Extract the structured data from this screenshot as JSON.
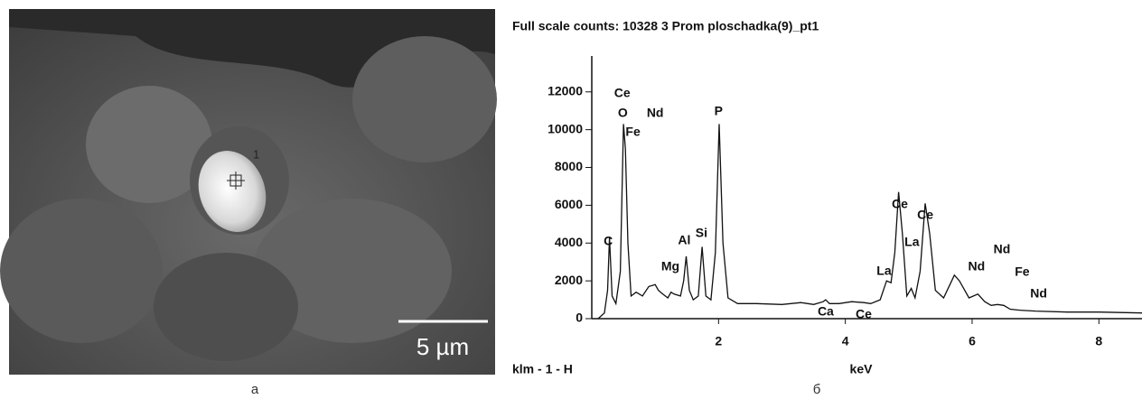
{
  "image_panel": {
    "point_label": "1",
    "scale_bar": "5 µm",
    "caption": "а"
  },
  "chart_data": {
    "type": "line",
    "title": "Full scale counts: 10328     3 Prom  ploschadka(9)_pt1",
    "x_label": "keV",
    "corner_label": "klm - 1 - H",
    "caption": "б",
    "x": [
      0.1,
      0.2,
      0.25,
      0.28,
      0.32,
      0.38,
      0.45,
      0.5,
      0.53,
      0.57,
      0.62,
      0.7,
      0.8,
      0.9,
      1.0,
      1.05,
      1.12,
      1.2,
      1.25,
      1.3,
      1.4,
      1.45,
      1.49,
      1.54,
      1.6,
      1.68,
      1.74,
      1.8,
      1.88,
      1.95,
      2.01,
      2.07,
      2.15,
      2.3,
      2.6,
      3.0,
      3.3,
      3.5,
      3.65,
      3.69,
      3.75,
      3.9,
      4.1,
      4.29,
      4.4,
      4.55,
      4.65,
      4.72,
      4.78,
      4.84,
      4.9,
      4.97,
      5.04,
      5.1,
      5.18,
      5.26,
      5.33,
      5.42,
      5.55,
      5.65,
      5.72,
      5.8,
      5.95,
      6.09,
      6.2,
      6.3,
      6.4,
      6.5,
      6.6,
      6.75,
      7.0,
      7.5,
      8.0,
      8.68
    ],
    "series": [
      {
        "color": "#111111",
        "values": [
          0,
          300,
          1500,
          4300,
          1200,
          800,
          2500,
          10300,
          9000,
          4000,
          1200,
          1400,
          1200,
          1700,
          1800,
          1500,
          1300,
          1100,
          1400,
          1300,
          1200,
          2000,
          3300,
          1500,
          1000,
          1200,
          3800,
          1200,
          1000,
          3500,
          10300,
          4000,
          1100,
          800,
          800,
          750,
          850,
          750,
          900,
          1000,
          800,
          800,
          900,
          850,
          800,
          1000,
          2000,
          1900,
          3500,
          6700,
          4500,
          1200,
          1600,
          1100,
          2500,
          6100,
          4500,
          1500,
          1100,
          1800,
          2300,
          2000,
          1100,
          1300,
          900,
          700,
          750,
          700,
          500,
          450,
          400,
          350,
          350,
          300
        ]
      }
    ],
    "xlim": [
      0,
      8.68
    ],
    "ylim": [
      0,
      13900
    ],
    "xticks": [
      2,
      4,
      6,
      8
    ],
    "yticks": [
      0,
      2000,
      4000,
      6000,
      8000,
      10000,
      12000
    ],
    "annotations": [
      {
        "text": "C",
        "x": 0.26,
        "y": 4064
      },
      {
        "text": "Ce",
        "x": 0.48,
        "y": 11900
      },
      {
        "text": "O",
        "x": 0.49,
        "y": 10850
      },
      {
        "text": "Nd",
        "x": 1.0,
        "y": 10850
      },
      {
        "text": "Fe",
        "x": 0.65,
        "y": 9850
      },
      {
        "text": "Mg",
        "x": 1.24,
        "y": 2725
      },
      {
        "text": "Al",
        "x": 1.46,
        "y": 4112
      },
      {
        "text": "Si",
        "x": 1.73,
        "y": 4494
      },
      {
        "text": "P",
        "x": 2.0,
        "y": 10947
      },
      {
        "text": "Ca",
        "x": 3.69,
        "y": 335
      },
      {
        "text": "Ce",
        "x": 4.29,
        "y": 191
      },
      {
        "text": "La",
        "x": 4.61,
        "y": 2486
      },
      {
        "text": "Ce",
        "x": 4.86,
        "y": 6025
      },
      {
        "text": "La",
        "x": 5.05,
        "y": 4017
      },
      {
        "text": "Ce",
        "x": 5.26,
        "y": 5450
      },
      {
        "text": "Nd",
        "x": 6.07,
        "y": 2725
      },
      {
        "text": "Nd",
        "x": 6.47,
        "y": 3633
      },
      {
        "text": "Fe",
        "x": 6.79,
        "y": 2438
      },
      {
        "text": "Nd",
        "x": 7.05,
        "y": 1291
      }
    ]
  }
}
